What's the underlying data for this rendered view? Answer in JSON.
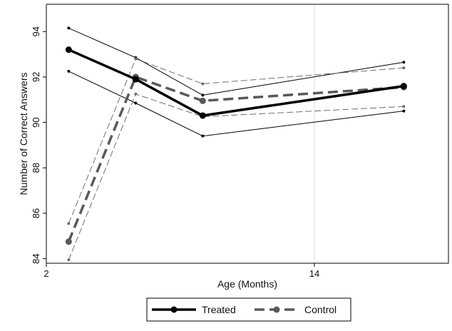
{
  "chart_data": {
    "type": "line",
    "title": "",
    "xlabel": "Age (Months)",
    "ylabel": "Number of Correct Answers",
    "xlim": [
      2,
      20
    ],
    "ylim": [
      83.8,
      95.2
    ],
    "xticks": [
      2,
      14
    ],
    "yticks": [
      84,
      86,
      88,
      90,
      92,
      94
    ],
    "grid": {
      "vertical_at_x": [
        14
      ],
      "horizontal": false
    },
    "legend_position": "bottom",
    "colors": {
      "treated": "#000000",
      "control": "#595959",
      "treated_ci": "#000000",
      "control_ci": "#6e6e6e",
      "grid": "#dcdcdc",
      "frame": "#000000"
    },
    "series": [
      {
        "name": "Treated",
        "style": "solid",
        "x": [
          3,
          6,
          9,
          18
        ],
        "values": [
          93.2,
          91.9,
          90.3,
          91.6
        ],
        "ci_lower": [
          92.25,
          90.85,
          89.4,
          90.5
        ],
        "ci_upper": [
          94.15,
          92.85,
          91.2,
          92.65
        ]
      },
      {
        "name": "Control",
        "style": "dashed",
        "x": [
          3,
          6,
          9,
          18
        ],
        "values": [
          84.75,
          92.0,
          90.95,
          91.55
        ],
        "ci_lower": [
          83.95,
          91.25,
          90.25,
          90.7
        ],
        "ci_upper": [
          85.55,
          92.8,
          91.7,
          92.4
        ]
      }
    ]
  }
}
